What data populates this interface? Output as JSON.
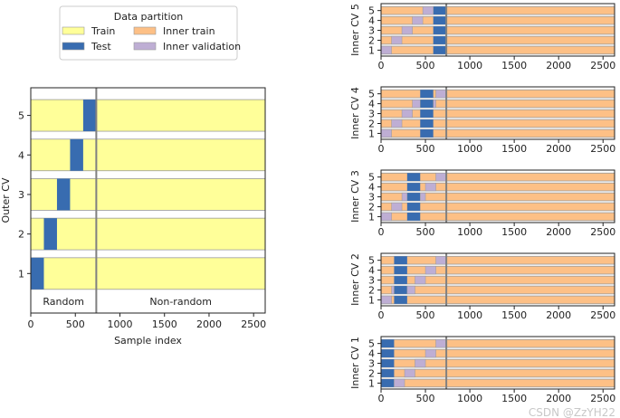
{
  "legend": {
    "title": "Data partition",
    "items": [
      {
        "label": "Train",
        "color": "#ffff99"
      },
      {
        "label": "Inner train",
        "color": "#fdc086"
      },
      {
        "label": "Test",
        "color": "#386cb0"
      },
      {
        "label": "Inner validation",
        "color": "#beaed4"
      }
    ]
  },
  "watermark": "CSDN @ZzYH22",
  "chart_data": [
    {
      "type": "bar",
      "orientation": "horizontal-segments",
      "title": "",
      "xlabel": "Sample index",
      "ylabel": "Outer CV",
      "xlim": [
        0,
        2630
      ],
      "xticks": [
        "0",
        "500",
        "1000",
        "1500",
        "2000",
        "2500"
      ],
      "boundary": 735,
      "annotations": [
        "Random",
        "Non-random"
      ],
      "grid": false,
      "rows": [
        {
          "label": "1",
          "base": "Train",
          "test": [
            0,
            147
          ],
          "validation": []
        },
        {
          "label": "2",
          "base": "Train",
          "test": [
            147,
            294
          ],
          "validation": []
        },
        {
          "label": "3",
          "base": "Train",
          "test": [
            294,
            441
          ],
          "validation": []
        },
        {
          "label": "4",
          "base": "Train",
          "test": [
            441,
            588
          ],
          "validation": []
        },
        {
          "label": "5",
          "base": "Train",
          "test": [
            588,
            735
          ],
          "validation": []
        }
      ]
    },
    {
      "type": "bar",
      "orientation": "horizontal-segments",
      "title": "",
      "xlabel": "",
      "ylabel": "Inner CV 5",
      "xlim": [
        0,
        2630
      ],
      "xticks": [
        "0",
        "500",
        "1000",
        "1500",
        "2000",
        "2500"
      ],
      "boundary": 735,
      "rows": [
        {
          "label": "1",
          "base": "Inner train",
          "test": [
            588,
            735
          ],
          "validation": [
            [
              0,
              118
            ]
          ]
        },
        {
          "label": "2",
          "base": "Inner train",
          "test": [
            588,
            735
          ],
          "validation": [
            [
              118,
              235
            ]
          ]
        },
        {
          "label": "3",
          "base": "Inner train",
          "test": [
            588,
            735
          ],
          "validation": [
            [
              235,
              353
            ]
          ]
        },
        {
          "label": "4",
          "base": "Inner train",
          "test": [
            588,
            735
          ],
          "validation": [
            [
              353,
              470
            ]
          ]
        },
        {
          "label": "5",
          "base": "Inner train",
          "test": [
            588,
            735
          ],
          "validation": [
            [
              470,
              588
            ]
          ]
        }
      ]
    },
    {
      "type": "bar",
      "orientation": "horizontal-segments",
      "title": "",
      "xlabel": "",
      "ylabel": "Inner CV 4",
      "xlim": [
        0,
        2630
      ],
      "xticks": [
        "0",
        "500",
        "1000",
        "1500",
        "2000",
        "2500"
      ],
      "boundary": 735,
      "rows": [
        {
          "label": "1",
          "base": "Inner train",
          "test": [
            441,
            588
          ],
          "validation": [
            [
              0,
              118
            ]
          ]
        },
        {
          "label": "2",
          "base": "Inner train",
          "test": [
            441,
            588
          ],
          "validation": [
            [
              118,
              235
            ]
          ]
        },
        {
          "label": "3",
          "base": "Inner train",
          "test": [
            441,
            588
          ],
          "validation": [
            [
              235,
              353
            ]
          ]
        },
        {
          "label": "4",
          "base": "Inner train",
          "test": [
            441,
            588
          ],
          "validation": [
            [
              353,
              441
            ],
            [
              588,
              617
            ]
          ]
        },
        {
          "label": "5",
          "base": "Inner train",
          "test": [
            441,
            588
          ],
          "validation": [
            [
              617,
              735
            ]
          ]
        }
      ]
    },
    {
      "type": "bar",
      "orientation": "horizontal-segments",
      "title": "",
      "xlabel": "",
      "ylabel": "Inner CV 3",
      "xlim": [
        0,
        2630
      ],
      "xticks": [
        "0",
        "500",
        "1000",
        "1500",
        "2000",
        "2500"
      ],
      "boundary": 735,
      "rows": [
        {
          "label": "1",
          "base": "Inner train",
          "test": [
            294,
            441
          ],
          "validation": [
            [
              0,
              118
            ]
          ]
        },
        {
          "label": "2",
          "base": "Inner train",
          "test": [
            294,
            441
          ],
          "validation": [
            [
              118,
              235
            ]
          ]
        },
        {
          "label": "3",
          "base": "Inner train",
          "test": [
            294,
            441
          ],
          "validation": [
            [
              235,
              294
            ],
            [
              441,
              500
            ]
          ]
        },
        {
          "label": "4",
          "base": "Inner train",
          "test": [
            294,
            441
          ],
          "validation": [
            [
              500,
              617
            ]
          ]
        },
        {
          "label": "5",
          "base": "Inner train",
          "test": [
            294,
            441
          ],
          "validation": [
            [
              617,
              735
            ]
          ]
        }
      ]
    },
    {
      "type": "bar",
      "orientation": "horizontal-segments",
      "title": "",
      "xlabel": "",
      "ylabel": "Inner CV 2",
      "xlim": [
        0,
        2630
      ],
      "xticks": [
        "0",
        "500",
        "1000",
        "1500",
        "2000",
        "2500"
      ],
      "boundary": 735,
      "rows": [
        {
          "label": "1",
          "base": "Inner train",
          "test": [
            147,
            294
          ],
          "validation": [
            [
              0,
              118
            ]
          ]
        },
        {
          "label": "2",
          "base": "Inner train",
          "test": [
            147,
            294
          ],
          "validation": [
            [
              118,
              147
            ],
            [
              294,
              382
            ]
          ]
        },
        {
          "label": "3",
          "base": "Inner train",
          "test": [
            147,
            294
          ],
          "validation": [
            [
              382,
              500
            ]
          ]
        },
        {
          "label": "4",
          "base": "Inner train",
          "test": [
            147,
            294
          ],
          "validation": [
            [
              500,
              617
            ]
          ]
        },
        {
          "label": "5",
          "base": "Inner train",
          "test": [
            147,
            294
          ],
          "validation": [
            [
              617,
              735
            ]
          ]
        }
      ]
    },
    {
      "type": "bar",
      "orientation": "horizontal-segments",
      "title": "",
      "xlabel": "",
      "ylabel": "Inner CV 1",
      "xlim": [
        0,
        2630
      ],
      "xticks": [
        "0",
        "500",
        "1000",
        "1500",
        "2000",
        "2500"
      ],
      "boundary": 735,
      "rows": [
        {
          "label": "1",
          "base": "Inner train",
          "test": [
            0,
            147
          ],
          "validation": [
            [
              147,
              265
            ]
          ]
        },
        {
          "label": "2",
          "base": "Inner train",
          "test": [
            0,
            147
          ],
          "validation": [
            [
              265,
              382
            ]
          ]
        },
        {
          "label": "3",
          "base": "Inner train",
          "test": [
            0,
            147
          ],
          "validation": [
            [
              382,
              500
            ]
          ]
        },
        {
          "label": "4",
          "base": "Inner train",
          "test": [
            0,
            147
          ],
          "validation": [
            [
              500,
              617
            ]
          ]
        },
        {
          "label": "5",
          "base": "Inner train",
          "test": [
            0,
            147
          ],
          "validation": [
            [
              617,
              735
            ]
          ]
        }
      ]
    }
  ]
}
